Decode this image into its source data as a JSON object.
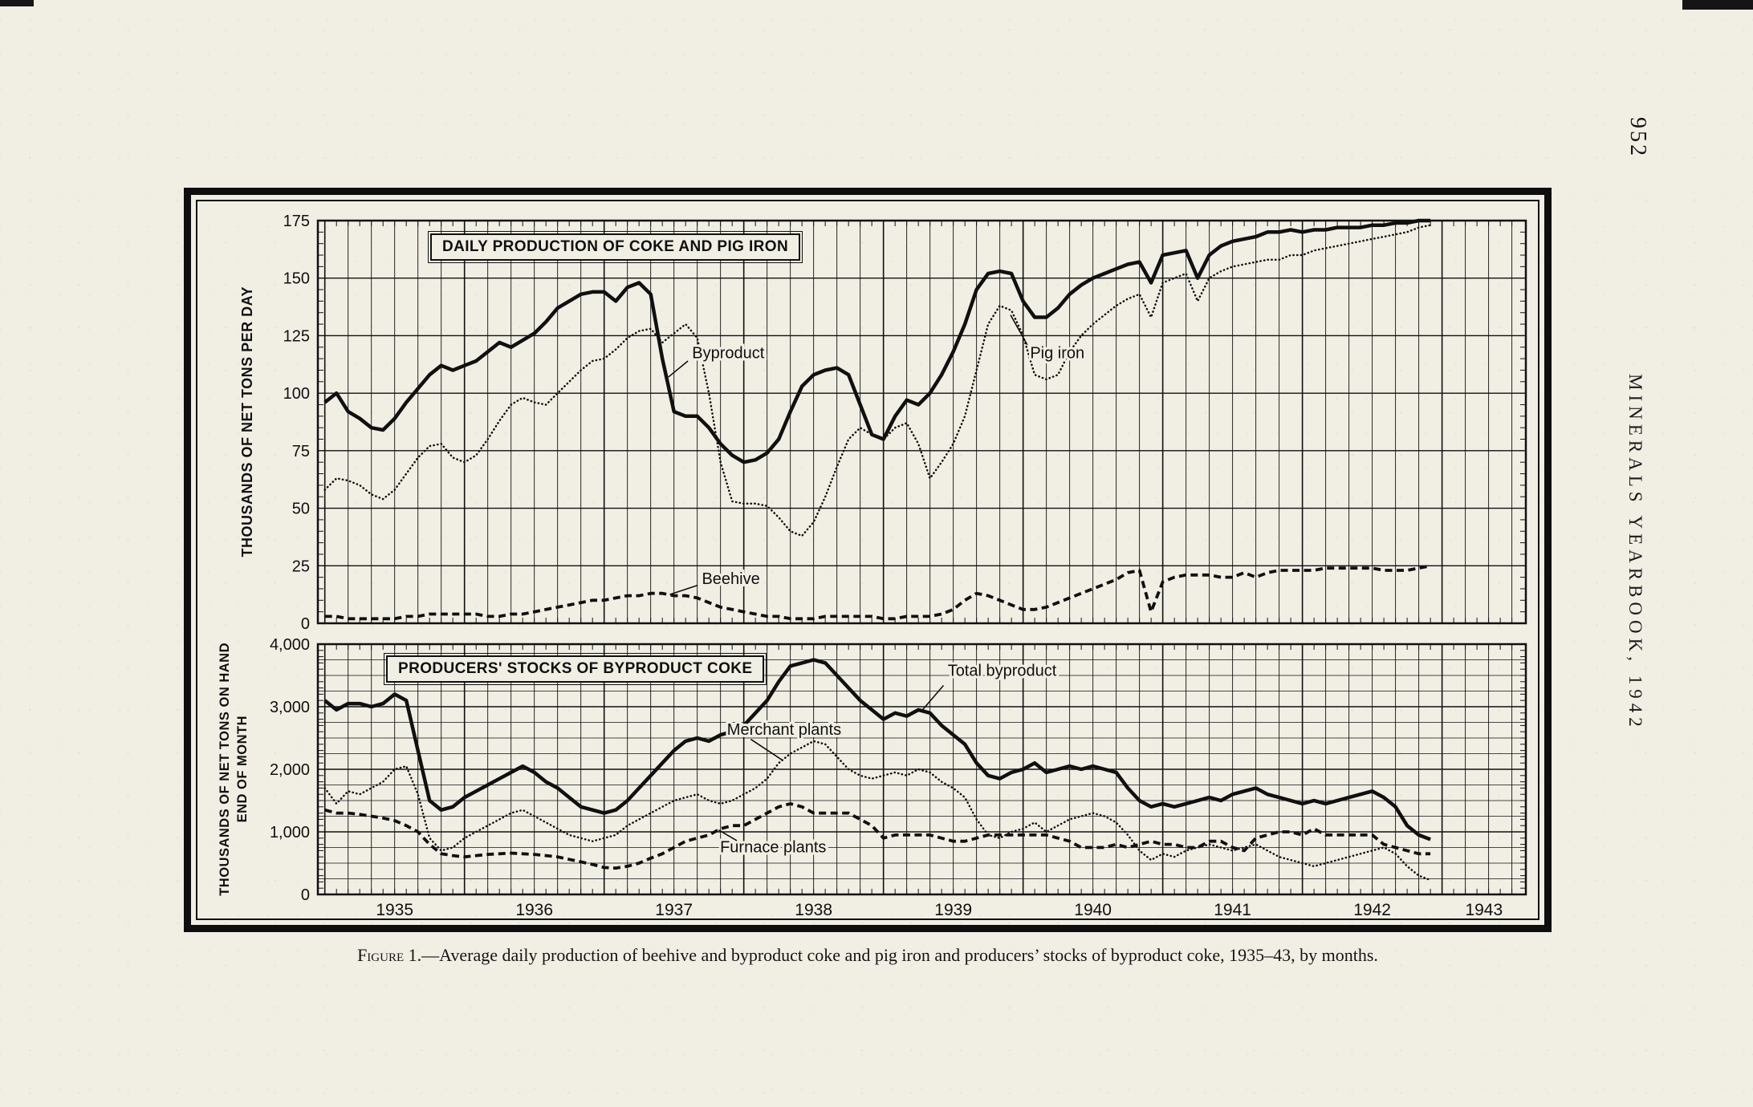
{
  "page": {
    "page_number": "952",
    "journal_title": "MINERALS YEARBOOK, 1942",
    "caption_label": "Figure 1.",
    "caption_text": "—Average daily production of beehive and byproduct coke and pig iron and producers’ stocks of byproduct coke, 1935–43, by months."
  },
  "chart_data": [
    {
      "type": "line",
      "title": "DAILY PRODUCTION OF COKE AND PIG IRON",
      "ylabel": "THOUSANDS OF NET TONS PER DAY",
      "ylabel_lines": [
        "THOUSANDS OF NET TONS PER DAY"
      ],
      "ylim": [
        0,
        175
      ],
      "ytick_step": 25,
      "y_grid_step": 25,
      "y_minor_tick": 5,
      "x_axis_range": [
        1934.95,
        1943.6
      ],
      "x_start_year": 1935,
      "x_frequency": "monthly",
      "grid": "on",
      "annotations": [
        {
          "label": "Byproduct"
        },
        {
          "label": "Pig iron"
        },
        {
          "label": "Beehive"
        }
      ],
      "series": [
        {
          "name": "Byproduct",
          "style": "thick-solid",
          "values": [
            96,
            100,
            92,
            89,
            85,
            84,
            89,
            96,
            102,
            108,
            112,
            110,
            112,
            114,
            118,
            122,
            120,
            123,
            126,
            131,
            137,
            140,
            143,
            144,
            144,
            140,
            146,
            148,
            143,
            115,
            92,
            90,
            90,
            85,
            78,
            73,
            70,
            71,
            74,
            80,
            92,
            103,
            108,
            110,
            111,
            108,
            95,
            82,
            80,
            90,
            97,
            95,
            100,
            108,
            118,
            130,
            145,
            152,
            153,
            152,
            140,
            133,
            133,
            137,
            143,
            147,
            150,
            152,
            154,
            156,
            157,
            148,
            160,
            161,
            162,
            150,
            160,
            164,
            166,
            167,
            168,
            170,
            170,
            171,
            170,
            171,
            171,
            172,
            172,
            172,
            173,
            173,
            174,
            174,
            175,
            175
          ]
        },
        {
          "name": "Pig iron",
          "style": "thin-dotted",
          "values": [
            58,
            63,
            62,
            60,
            56,
            54,
            58,
            65,
            72,
            77,
            78,
            72,
            70,
            73,
            80,
            88,
            95,
            98,
            96,
            95,
            100,
            105,
            110,
            114,
            115,
            119,
            124,
            127,
            128,
            122,
            126,
            130,
            124,
            100,
            70,
            53,
            52,
            52,
            51,
            46,
            40,
            38,
            44,
            55,
            68,
            80,
            85,
            82,
            80,
            85,
            87,
            78,
            63,
            70,
            78,
            90,
            110,
            130,
            138,
            136,
            125,
            108,
            106,
            108,
            118,
            125,
            130,
            134,
            138,
            141,
            143,
            133,
            148,
            150,
            152,
            140,
            150,
            153,
            155,
            156,
            157,
            158,
            158,
            160,
            160,
            162,
            163,
            164,
            165,
            166,
            167,
            168,
            169,
            170,
            172,
            173
          ]
        },
        {
          "name": "Beehive",
          "style": "bold-dashed",
          "values": [
            3,
            3,
            2,
            2,
            2,
            2,
            2,
            3,
            3,
            4,
            4,
            4,
            4,
            4,
            3,
            3,
            4,
            4,
            5,
            6,
            7,
            8,
            9,
            10,
            10,
            11,
            12,
            12,
            13,
            13,
            12,
            12,
            11,
            9,
            7,
            6,
            5,
            4,
            3,
            3,
            2,
            2,
            2,
            3,
            3,
            3,
            3,
            3,
            2,
            2,
            3,
            3,
            3,
            4,
            6,
            10,
            13,
            12,
            10,
            8,
            6,
            6,
            7,
            9,
            11,
            13,
            15,
            17,
            19,
            22,
            23,
            5,
            18,
            20,
            21,
            21,
            21,
            20,
            20,
            22,
            20,
            22,
            23,
            23,
            23,
            23,
            24,
            24,
            24,
            24,
            24,
            23,
            23,
            23,
            24,
            25
          ]
        }
      ]
    },
    {
      "type": "line",
      "title": "PRODUCERS' STOCKS OF BYPRODUCT COKE",
      "ylabel": "THOUSANDS OF NET TONS ON HAND END OF MONTH",
      "ylabel_lines": [
        "THOUSANDS OF NET TONS ON HAND",
        "END OF MONTH"
      ],
      "ylim": [
        0,
        4000
      ],
      "ytick_step": 1000,
      "y_grid_step": 250,
      "y_minor_tick": 100,
      "x_axis_range": [
        1934.95,
        1943.6
      ],
      "x_start_year": 1935,
      "x_frequency": "monthly",
      "grid": "on",
      "x_year_labels": [
        "1935",
        "1936",
        "1937",
        "1938",
        "1939",
        "1940",
        "1941",
        "1942",
        "1943"
      ],
      "annotations": [
        {
          "label": "Total byproduct"
        },
        {
          "label": "Merchant plants"
        },
        {
          "label": "Furnace plants"
        }
      ],
      "series": [
        {
          "name": "Total byproduct",
          "style": "thick-solid",
          "values": [
            3100,
            2950,
            3050,
            3050,
            3000,
            3050,
            3200,
            3100,
            2300,
            1500,
            1350,
            1400,
            1550,
            1650,
            1750,
            1850,
            1950,
            2050,
            1950,
            1800,
            1700,
            1550,
            1400,
            1350,
            1300,
            1350,
            1500,
            1700,
            1900,
            2100,
            2300,
            2450,
            2500,
            2450,
            2550,
            2600,
            2700,
            2900,
            3100,
            3400,
            3650,
            3700,
            3750,
            3700,
            3500,
            3300,
            3100,
            2950,
            2800,
            2900,
            2850,
            2950,
            2900,
            2700,
            2550,
            2400,
            2100,
            1900,
            1850,
            1950,
            2000,
            2100,
            1950,
            2000,
            2050,
            2000,
            2050,
            2000,
            1950,
            1700,
            1500,
            1400,
            1450,
            1400,
            1450,
            1500,
            1550,
            1500,
            1600,
            1650,
            1700,
            1600,
            1550,
            1500,
            1450,
            1500,
            1450,
            1500,
            1550,
            1600,
            1650,
            1550,
            1400,
            1100,
            950,
            880
          ]
        },
        {
          "name": "Merchant plants",
          "style": "thin-dotted",
          "values": [
            1700,
            1450,
            1650,
            1600,
            1700,
            1800,
            2000,
            2050,
            1600,
            900,
            700,
            750,
            900,
            1000,
            1100,
            1200,
            1300,
            1350,
            1250,
            1150,
            1050,
            950,
            900,
            850,
            900,
            950,
            1100,
            1200,
            1300,
            1400,
            1500,
            1550,
            1600,
            1500,
            1450,
            1500,
            1600,
            1700,
            1850,
            2100,
            2250,
            2350,
            2450,
            2400,
            2200,
            2000,
            1900,
            1850,
            1900,
            1950,
            1900,
            2000,
            1950,
            1800,
            1700,
            1550,
            1200,
            950,
            900,
            1000,
            1050,
            1150,
            1000,
            1100,
            1200,
            1250,
            1300,
            1250,
            1150,
            950,
            700,
            550,
            650,
            600,
            700,
            750,
            800,
            750,
            700,
            750,
            800,
            700,
            600,
            550,
            500,
            450,
            500,
            550,
            600,
            650,
            700,
            750,
            650,
            450,
            300,
            230
          ]
        },
        {
          "name": "Furnace plants",
          "style": "bold-dashed",
          "values": [
            1350,
            1300,
            1300,
            1280,
            1250,
            1220,
            1180,
            1100,
            1000,
            800,
            650,
            620,
            600,
            620,
            640,
            650,
            660,
            650,
            640,
            620,
            600,
            560,
            520,
            480,
            430,
            420,
            450,
            500,
            580,
            650,
            750,
            850,
            900,
            950,
            1050,
            1100,
            1100,
            1200,
            1300,
            1400,
            1450,
            1400,
            1300,
            1300,
            1300,
            1300,
            1200,
            1100,
            900,
            950,
            950,
            950,
            950,
            900,
            850,
            850,
            900,
            950,
            950,
            950,
            950,
            950,
            950,
            900,
            850,
            750,
            750,
            750,
            800,
            750,
            800,
            850,
            800,
            800,
            750,
            750,
            850,
            850,
            750,
            700,
            900,
            950,
            1000,
            1000,
            950,
            1050,
            950,
            950,
            950,
            950,
            950,
            800,
            750,
            700,
            650,
            650
          ]
        }
      ]
    }
  ]
}
